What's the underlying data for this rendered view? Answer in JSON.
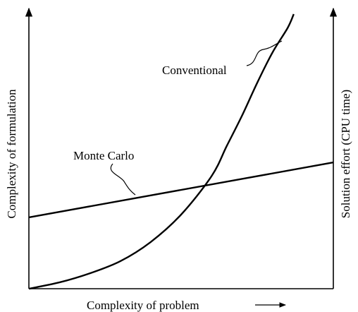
{
  "chart_data": {
    "type": "line",
    "title": "",
    "xlabel": "Complexity of problem",
    "ylabel_left": "Complexity of formulation",
    "ylabel_right": "Solution effort (CPU time)",
    "x_ticks": [],
    "y_ticks": [],
    "grid": false,
    "xlim": [
      0,
      1
    ],
    "ylim": [
      0,
      1
    ],
    "series": [
      {
        "name": "Conventional",
        "x": [
          0.0,
          0.1,
          0.2,
          0.3,
          0.4,
          0.5,
          0.6,
          0.65,
          0.7,
          0.75,
          0.8,
          0.85,
          0.87
        ],
        "y": [
          0.0,
          0.023,
          0.056,
          0.1,
          0.17,
          0.27,
          0.41,
          0.52,
          0.63,
          0.75,
          0.86,
          0.95,
          1.0
        ]
      },
      {
        "name": "Monte Carlo",
        "x": [
          0.0,
          1.0
        ],
        "y": [
          0.26,
          0.46
        ]
      }
    ]
  }
}
